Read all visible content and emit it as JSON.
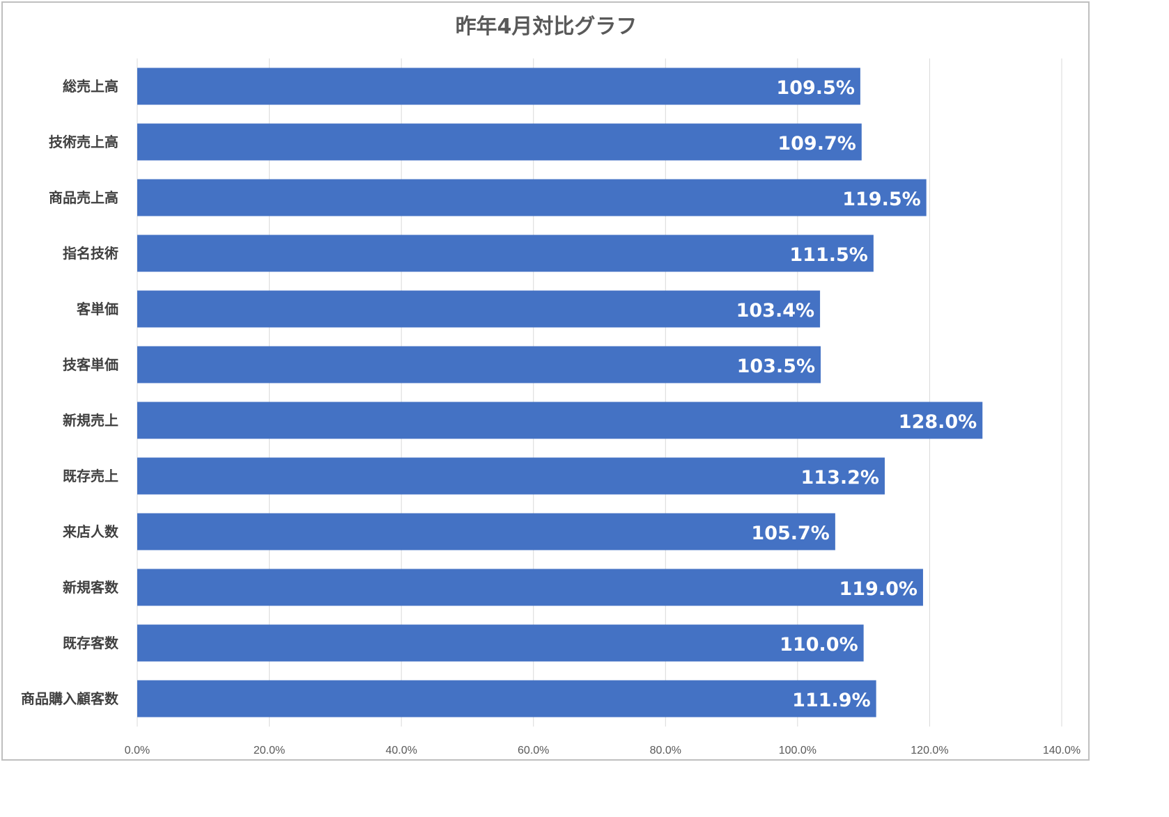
{
  "chart_data": {
    "type": "bar",
    "orientation": "horizontal",
    "title": "昨年4月対比グラフ",
    "categories": [
      "総売上高",
      "技術売上高",
      "商品売上高",
      "指名技術",
      "客単価",
      "技客単価",
      "新規売上",
      "既存売上",
      "来店人数",
      "新規客数",
      "既存客数",
      "商品購入顧客数"
    ],
    "values": [
      109.5,
      109.7,
      119.5,
      111.5,
      103.4,
      103.5,
      128.0,
      113.2,
      105.7,
      119.0,
      110.0,
      111.9
    ],
    "data_labels": [
      "109.5%",
      "109.7%",
      "119.5%",
      "111.5%",
      "103.4%",
      "103.5%",
      "128.0%",
      "113.2%",
      "105.7%",
      "119.0%",
      "110.0%",
      "111.9%"
    ],
    "x_ticks": [
      "0.0%",
      "20.0%",
      "40.0%",
      "60.0%",
      "80.0%",
      "100.0%",
      "120.0%",
      "140.0%"
    ],
    "xlim": [
      0,
      140
    ],
    "xlabel": "",
    "ylabel": "",
    "grid": "vertical",
    "legend": "none",
    "bar_color": "#4472c4",
    "grid_color": "#d9d9d9"
  }
}
